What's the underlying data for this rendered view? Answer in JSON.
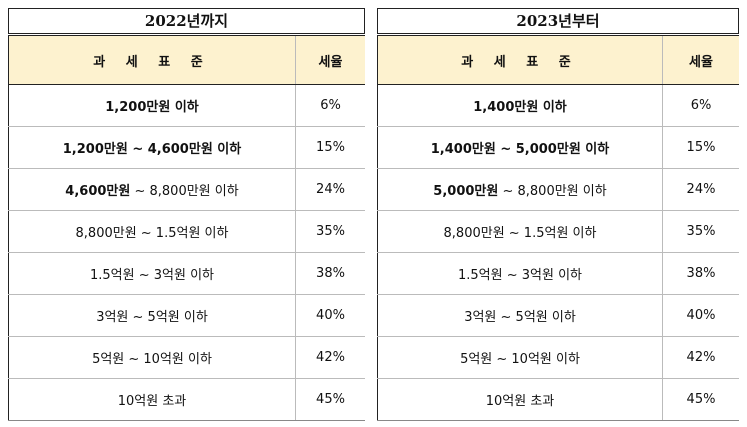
{
  "left": {
    "title": "2022년까지",
    "header": {
      "bracket": "과 세 표 준",
      "rate": "세율"
    },
    "rows": [
      {
        "bold": "1,200만원 이하",
        "rest": "",
        "rate": "6%"
      },
      {
        "bold": "1,200만원 ~ 4,600만원 이하",
        "rest": "",
        "rate": "15%"
      },
      {
        "bold": "4,600만원",
        "rest": " ~ 8,800만원 이하",
        "rate": "24%"
      },
      {
        "bold": "",
        "rest": "8,800만원 ~ 1.5억원 이하",
        "rate": "35%"
      },
      {
        "bold": "",
        "rest": "1.5억원 ~ 3억원 이하",
        "rate": "38%"
      },
      {
        "bold": "",
        "rest": "3억원 ~ 5억원 이하",
        "rate": "40%"
      },
      {
        "bold": "",
        "rest": "5억원 ~ 10억원 이하",
        "rate": "42%"
      },
      {
        "bold": "",
        "rest": "10억원 초과",
        "rate": "45%"
      }
    ]
  },
  "right": {
    "title": "2023년부터",
    "header": {
      "bracket": "과 세 표 준",
      "rate": "세율"
    },
    "rows": [
      {
        "bold": "1,400만원 이하",
        "rest": "",
        "rate": "6%"
      },
      {
        "bold": "1,400만원 ~ 5,000만원 이하",
        "rest": "",
        "rate": "15%"
      },
      {
        "bold": "5,000만원",
        "rest": " ~ 8,800만원 이하",
        "rate": "24%"
      },
      {
        "bold": "",
        "rest": "8,800만원 ~ 1.5억원 이하",
        "rate": "35%"
      },
      {
        "bold": "",
        "rest": "1.5억원 ~ 3억원 이하",
        "rate": "38%"
      },
      {
        "bold": "",
        "rest": "3억원 ~ 5억원 이하",
        "rate": "40%"
      },
      {
        "bold": "",
        "rest": "5억원 ~ 10억원 이하",
        "rate": "42%"
      },
      {
        "bold": "",
        "rest": "10억원 초과",
        "rate": "45%"
      }
    ]
  }
}
